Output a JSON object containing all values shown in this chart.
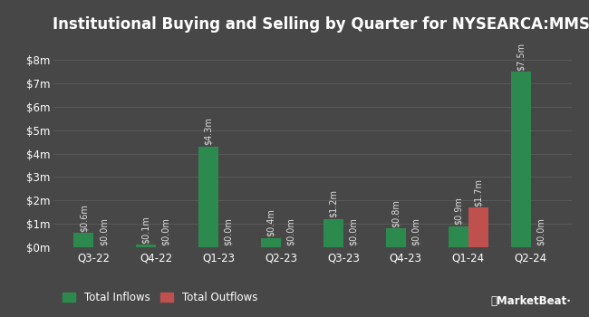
{
  "title": "Institutional Buying and Selling by Quarter for NYSEARCA:MMSC",
  "quarters": [
    "Q3-22",
    "Q4-22",
    "Q1-23",
    "Q2-23",
    "Q3-23",
    "Q4-23",
    "Q1-24",
    "Q2-24"
  ],
  "inflows": [
    0.6,
    0.1,
    4.3,
    0.4,
    1.2,
    0.8,
    0.9,
    7.5
  ],
  "outflows": [
    0.0,
    0.0,
    0.0,
    0.0,
    0.0,
    0.0,
    1.7,
    0.0
  ],
  "inflow_labels": [
    "$0.6m",
    "$0.1m",
    "$4.3m",
    "$0.4m",
    "$1.2m",
    "$0.8m",
    "$0.9m",
    "$7.5m"
  ],
  "outflow_labels": [
    "$0.0m",
    "$0.0m",
    "$0.0m",
    "$0.0m",
    "$0.0m",
    "$0.0m",
    "$1.7m",
    "$0.0m"
  ],
  "inflow_color": "#2d8a4e",
  "outflow_color": "#c0504d",
  "background_color": "#474747",
  "grid_color": "#5c5c5c",
  "text_color": "#ffffff",
  "label_color": "#dddddd",
  "bar_width": 0.32,
  "ylim": [
    0,
    8.8
  ],
  "yticks": [
    0,
    1,
    2,
    3,
    4,
    5,
    6,
    7,
    8
  ],
  "ytick_labels": [
    "$0m",
    "$1m",
    "$2m",
    "$3m",
    "$4m",
    "$5m",
    "$6m",
    "$7m",
    "$8m"
  ],
  "legend_inflow": "Total Inflows",
  "legend_outflow": "Total Outflows",
  "title_fontsize": 12,
  "axis_fontsize": 8.5,
  "label_fontsize": 7,
  "watermark": "MarketBeat"
}
